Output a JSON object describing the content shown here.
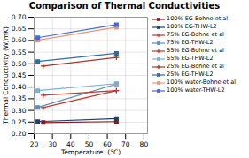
{
  "chart_data": {
    "type": "line",
    "title": "Comparison of Thermal Conductivities",
    "x_label": "Temperature  (°C)",
    "y_label": "Thermal Conductivity (W/mK)",
    "xlim": [
      20,
      82
    ],
    "ylim": [
      0.2,
      0.7
    ],
    "xticks": [
      20,
      30,
      40,
      50,
      60,
      70,
      80
    ],
    "yticks": [
      {
        "value": 0.2,
        "label": "0.20"
      },
      0.25,
      {
        "value": 0.3,
        "label": "0.30"
      },
      0.35,
      {
        "value": 0.4,
        "label": "0.40"
      },
      0.45,
      {
        "value": 0.5,
        "label": "0.50"
      },
      0.55,
      {
        "value": 0.6,
        "label": "0.60"
      },
      0.65,
      {
        "value": 0.7,
        "label": "0.70"
      }
    ],
    "grid": true,
    "legend": "right",
    "series": [
      {
        "name": "100% EG-Bohne et al",
        "color": "#8B1A1A",
        "marker": "square",
        "x": [
          25,
          65
        ],
        "values": [
          0.248,
          0.252
        ]
      },
      {
        "name": "100% EG-THW-L2",
        "color": "#1F3F6E",
        "marker": "square",
        "x": [
          22,
          65
        ],
        "values": [
          0.252,
          0.265
        ]
      },
      {
        "name": "75% EG-Bohne et al",
        "color": "#C0392B",
        "marker": "plus",
        "x": [
          25,
          65
        ],
        "values": [
          0.312,
          0.385
        ]
      },
      {
        "name": "75% EG-THW-L2",
        "color": "#5B8DB8",
        "marker": "square",
        "x": [
          22,
          65
        ],
        "values": [
          0.313,
          0.413
        ]
      },
      {
        "name": "55% EG-Bohne et al",
        "color": "#C0392B",
        "marker": "plus",
        "x": [
          25,
          65
        ],
        "values": [
          0.365,
          0.385
        ]
      },
      {
        "name": "55% EG-THW-L2",
        "color": "#7BAFD4",
        "marker": "square",
        "x": [
          22,
          65
        ],
        "values": [
          0.385,
          0.415
        ]
      },
      {
        "name": "25% EG-Bohne et al",
        "color": "#A93226",
        "marker": "plus",
        "x": [
          25,
          65
        ],
        "values": [
          0.49,
          0.527
        ]
      },
      {
        "name": "25% EG-THW-L2",
        "color": "#2E6DA4",
        "marker": "square",
        "x": [
          22,
          65
        ],
        "values": [
          0.51,
          0.545
        ]
      },
      {
        "name": "100% water-Bohne et al",
        "color": "#E8967A",
        "marker": "square",
        "x": [
          22,
          65
        ],
        "values": [
          0.601,
          0.657
        ]
      },
      {
        "name": "100% water-THW-L2",
        "color": "#4169E1",
        "marker": "square",
        "x": [
          22,
          65
        ],
        "values": [
          0.612,
          0.668
        ]
      }
    ]
  }
}
